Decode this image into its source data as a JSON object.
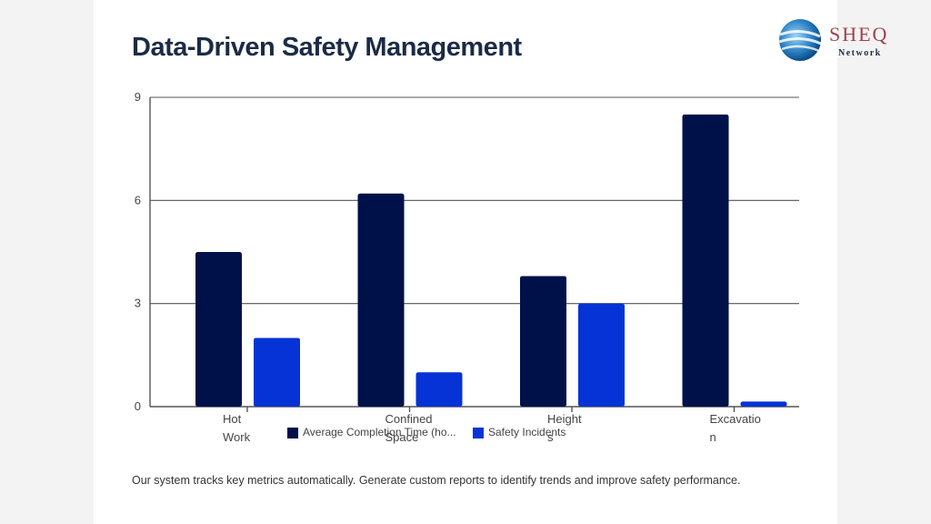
{
  "title": "Data-Driven Safety Management",
  "logo": {
    "name": "SHEQ",
    "sub": "Network"
  },
  "caption": "Our system tracks key metrics automatically. Generate custom reports to identify trends and improve safety performance.",
  "colors": {
    "series1": "#00114a",
    "series2": "#0533d6",
    "grid": "#555555",
    "axis_text": "#444444"
  },
  "chart_data": {
    "type": "bar",
    "categories": [
      [
        "Hot",
        "Work"
      ],
      [
        "Confined",
        "Space"
      ],
      [
        "Height",
        "s"
      ],
      [
        "Excavatio",
        "n"
      ]
    ],
    "series": [
      {
        "name": "Average Completion Time (ho...",
        "values": [
          4.5,
          6.2,
          3.8,
          8.5
        ]
      },
      {
        "name": "Safety Incidents",
        "values": [
          2,
          1,
          3,
          0.15
        ]
      }
    ],
    "ylim": [
      0,
      9
    ],
    "yticks": [
      "0",
      "3",
      "6",
      "9"
    ],
    "grid": true,
    "legend": "bottom-center"
  }
}
